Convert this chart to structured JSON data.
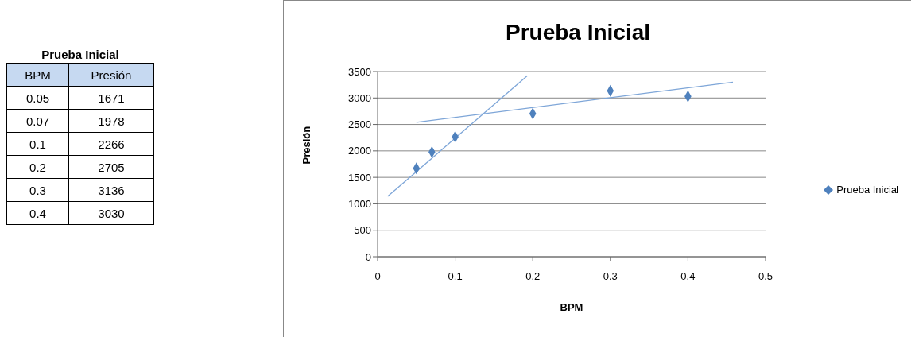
{
  "chart_data": {
    "type": "scatter",
    "title": "Prueba Inicial",
    "xlabel": "BPM",
    "ylabel": "Presión",
    "x": [
      0.05,
      0.07,
      0.1,
      0.2,
      0.3,
      0.4
    ],
    "series": [
      {
        "name": "Prueba Inicial",
        "color": "#4f81bd",
        "values": [
          1671,
          1978,
          2266,
          2705,
          3136,
          3030
        ]
      },
      {
        "type": "line",
        "color": "#7ea6d8",
        "marker": "none",
        "x": [
          0.013,
          0.193
        ],
        "values": [
          1140,
          3420
        ]
      },
      {
        "type": "line",
        "color": "#7ea6d8",
        "marker": "none",
        "x": [
          0.05,
          0.458
        ],
        "values": [
          2540,
          3300
        ]
      }
    ],
    "annotations": [
      "0.05",
      "1671",
      "0.07",
      "1978",
      "0.1",
      "2266",
      "0.2",
      "2705",
      "0.3",
      "3136",
      "0.4",
      "3030"
    ],
    "xlim": [
      0,
      0.5
    ],
    "xticks": [
      0,
      0.1,
      0.2,
      0.3,
      0.4,
      0.5
    ],
    "ylim": [
      0,
      3500
    ],
    "yticks": [
      0,
      500,
      1000,
      1500,
      2000,
      2500,
      3000,
      3500
    ],
    "grid": "y",
    "legend": "right",
    "marker": "diamond"
  }
}
